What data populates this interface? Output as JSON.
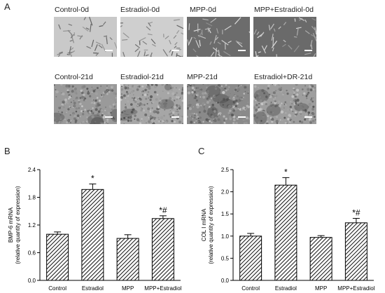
{
  "panel_a": {
    "letter": "A",
    "rows": [
      {
        "captions": [
          "Control-0d",
          "Estradiol-0d",
          "MPP-0d",
          "MPP+Estradiol-0d"
        ],
        "tones": [
          "#c9c9c9",
          "#cfcfcf",
          "#6c6c6c",
          "#6a6a6a"
        ]
      },
      {
        "captions": [
          "Control-21d",
          "Estradiol-21d",
          "MPP-21d",
          "Estradiol+DR-21d"
        ],
        "tones": [
          "#9a9a9a",
          "#a6a6a6",
          "#8a8a8a",
          "#9e9e9e"
        ]
      }
    ]
  },
  "panel_b": {
    "letter": "B"
  },
  "panel_c": {
    "letter": "C"
  },
  "chart_data": [
    {
      "type": "bar",
      "panel": "B",
      "ylabel": "BMP-6 mRNA",
      "ylabel2": "(relative quantity of expression)",
      "categories": [
        "Control",
        "Estradiol",
        "MPP",
        "MPP+Estradiol"
      ],
      "values": [
        1.0,
        1.97,
        0.91,
        1.34
      ],
      "errors": [
        0.05,
        0.12,
        0.08,
        0.06
      ],
      "annotations": [
        "",
        "*",
        "",
        "*#"
      ],
      "ylim": [
        0,
        2.4
      ],
      "yticks": [
        "0.0",
        "0.6",
        "1.2",
        "1.8",
        "2.4"
      ],
      "ytick_values": [
        0,
        0.6,
        1.2,
        1.8,
        2.4
      ],
      "bar_pattern": "diagonal-hatch",
      "grid": false
    },
    {
      "type": "bar",
      "panel": "C",
      "ylabel": "COL I mRNA",
      "ylabel2": "(relative quantity of expression)",
      "categories": [
        "Control",
        "Estradiol",
        "MPP",
        "MPP+Estradiol"
      ],
      "values": [
        1.0,
        2.15,
        0.97,
        1.3
      ],
      "errors": [
        0.06,
        0.17,
        0.04,
        0.1
      ],
      "annotations": [
        "",
        "*",
        "",
        "*#"
      ],
      "ylim": [
        0,
        2.5
      ],
      "yticks": [
        "0.0",
        "0.5",
        "1.0",
        "1.5",
        "2.0",
        "2.5"
      ],
      "ytick_values": [
        0,
        0.5,
        1.0,
        1.5,
        2.0,
        2.5
      ],
      "bar_pattern": "diagonal-hatch",
      "grid": false
    }
  ]
}
